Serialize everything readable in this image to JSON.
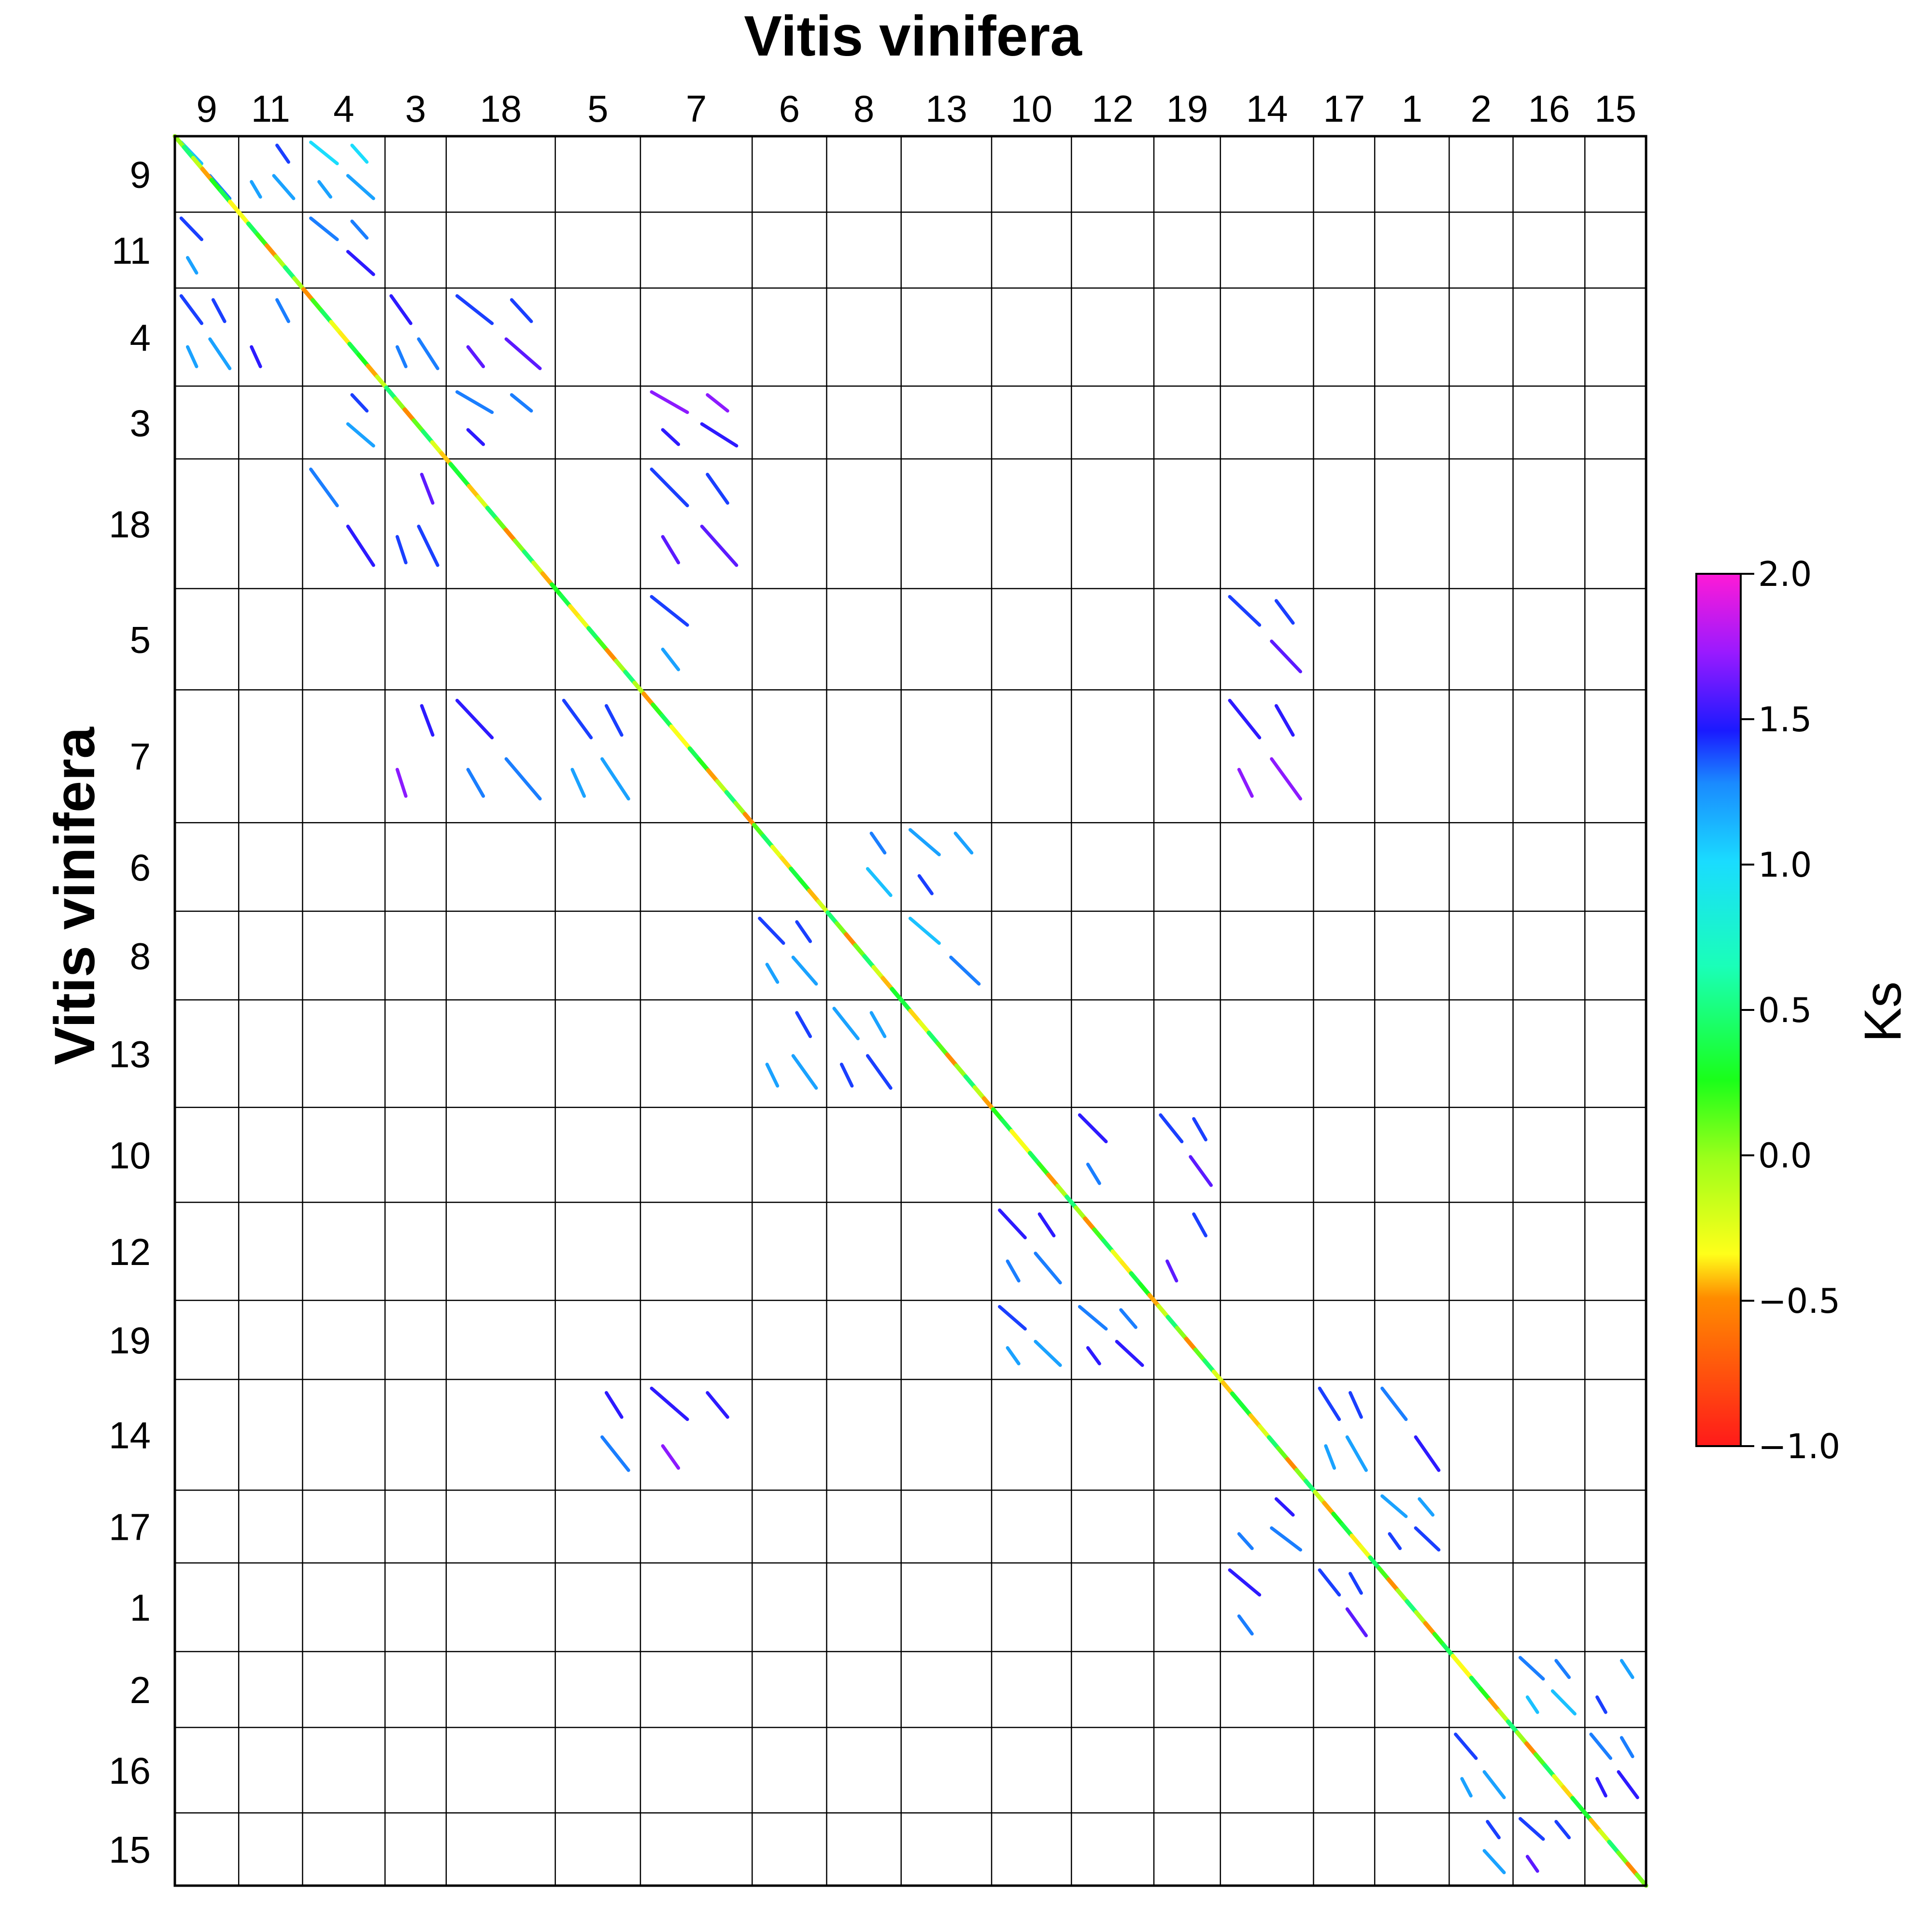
{
  "chart_data": {
    "type": "scatter",
    "subtype": "self-synteny dot plot",
    "title": "Vitis vinifera",
    "xlabel": "Vitis vinifera",
    "ylabel": "Vitis vinifera",
    "chromosome_order": [
      "9",
      "11",
      "4",
      "3",
      "18",
      "5",
      "7",
      "6",
      "8",
      "13",
      "10",
      "12",
      "19",
      "14",
      "17",
      "1",
      "2",
      "16",
      "15"
    ],
    "chromosome_lengths_relative": [
      2.4,
      2.4,
      3.1,
      2.3,
      4.1,
      3.2,
      4.2,
      2.8,
      2.8,
      3.4,
      3.0,
      3.1,
      2.5,
      3.5,
      2.3,
      2.8,
      2.4,
      2.7,
      2.3
    ],
    "colorbar": {
      "label": "Ks",
      "min": -1.0,
      "max": 2.0,
      "ticks": [
        "2.0",
        "1.5",
        "1.0",
        "0.5",
        "0.0",
        "−0.5",
        "−1.0"
      ],
      "tick_values": [
        2.0,
        1.5,
        1.0,
        0.5,
        0.0,
        -0.5,
        -1.0
      ],
      "colors_low_to_high": [
        "#ff1a1a",
        "#ff8c00",
        "#ffff1a",
        "#9cff1a",
        "#1aff1a",
        "#1affd1",
        "#1abaff",
        "#1a3aff",
        "#8a1aff",
        "#ff1aff"
      ]
    },
    "diagonal_ks_range": [
      -0.5,
      0.5
    ],
    "grid": true,
    "legend": "colorbar-right",
    "syntenic_segments": [
      {
        "x": "9",
        "y": "9",
        "ks": 1.2
      },
      {
        "x": "11",
        "y": "9",
        "ks": 1.3
      },
      {
        "x": "4",
        "y": "9",
        "ks": 1.1
      },
      {
        "x": "9",
        "y": "11",
        "ks": 1.3
      },
      {
        "x": "4",
        "y": "11",
        "ks": 1.4
      },
      {
        "x": "9",
        "y": "4",
        "ks": 1.3
      },
      {
        "x": "11",
        "y": "4",
        "ks": 1.4
      },
      {
        "x": "3",
        "y": "4",
        "ks": 1.4
      },
      {
        "x": "18",
        "y": "4",
        "ks": 1.5
      },
      {
        "x": "4",
        "y": "3",
        "ks": 1.3
      },
      {
        "x": "18",
        "y": "3",
        "ks": 1.4
      },
      {
        "x": "7",
        "y": "3",
        "ks": 1.6
      },
      {
        "x": "4",
        "y": "18",
        "ks": 1.4
      },
      {
        "x": "3",
        "y": "18",
        "ks": 1.5
      },
      {
        "x": "7",
        "y": "18",
        "ks": 1.5
      },
      {
        "x": "7",
        "y": "5",
        "ks": 1.3
      },
      {
        "x": "14",
        "y": "5",
        "ks": 1.5
      },
      {
        "x": "5",
        "y": "7",
        "ks": 1.3
      },
      {
        "x": "3",
        "y": "7",
        "ks": 1.6
      },
      {
        "x": "18",
        "y": "7",
        "ks": 1.4
      },
      {
        "x": "14",
        "y": "7",
        "ks": 1.6
      },
      {
        "x": "8",
        "y": "6",
        "ks": 1.2
      },
      {
        "x": "13",
        "y": "6",
        "ks": 1.3
      },
      {
        "x": "6",
        "y": "8",
        "ks": 1.3
      },
      {
        "x": "13",
        "y": "8",
        "ks": 1.2
      },
      {
        "x": "6",
        "y": "13",
        "ks": 1.3
      },
      {
        "x": "8",
        "y": "13",
        "ks": 1.3
      },
      {
        "x": "12",
        "y": "10",
        "ks": 1.4
      },
      {
        "x": "19",
        "y": "10",
        "ks": 1.5
      },
      {
        "x": "10",
        "y": "12",
        "ks": 1.4
      },
      {
        "x": "19",
        "y": "12",
        "ks": 1.5
      },
      {
        "x": "10",
        "y": "19",
        "ks": 1.3
      },
      {
        "x": "12",
        "y": "19",
        "ks": 1.4
      },
      {
        "x": "5",
        "y": "14",
        "ks": 1.4
      },
      {
        "x": "7",
        "y": "14",
        "ks": 1.6
      },
      {
        "x": "17",
        "y": "14",
        "ks": 1.3
      },
      {
        "x": "1",
        "y": "14",
        "ks": 1.4
      },
      {
        "x": "14",
        "y": "17",
        "ks": 1.4
      },
      {
        "x": "1",
        "y": "17",
        "ks": 1.3
      },
      {
        "x": "14",
        "y": "1",
        "ks": 1.4
      },
      {
        "x": "17",
        "y": "1",
        "ks": 1.5
      },
      {
        "x": "16",
        "y": "2",
        "ks": 1.2
      },
      {
        "x": "15",
        "y": "2",
        "ks": 1.3
      },
      {
        "x": "2",
        "y": "16",
        "ks": 1.3
      },
      {
        "x": "15",
        "y": "16",
        "ks": 1.4
      },
      {
        "x": "2",
        "y": "15",
        "ks": 1.3
      },
      {
        "x": "16",
        "y": "15",
        "ks": 1.5
      }
    ]
  }
}
